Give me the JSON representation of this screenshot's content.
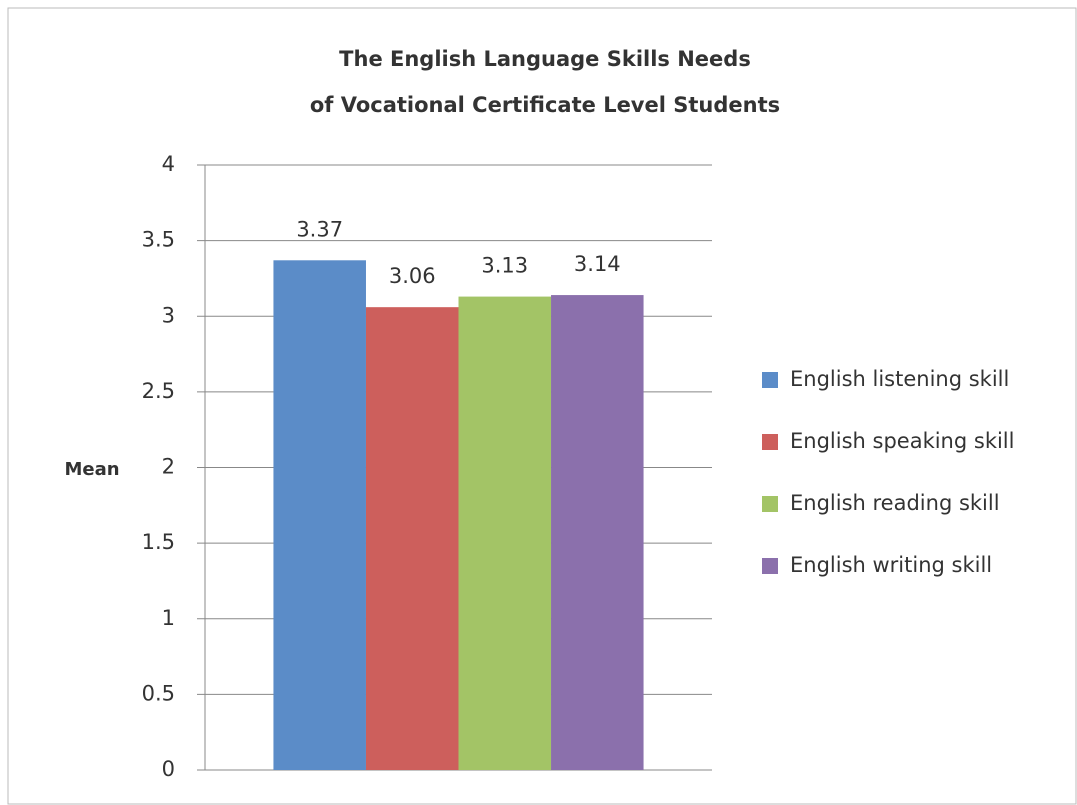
{
  "chart_data": {
    "type": "bar",
    "title": [
      "The English Language Skills Needs",
      "of Vocational Certificate Level Students"
    ],
    "y_label": "Mean",
    "categories": [
      null
    ],
    "series": [
      {
        "name": "English listening skill",
        "color": "#5b8cc8",
        "values": [
          3.37
        ]
      },
      {
        "name": "English speaking skill",
        "color": "#cd5f5c",
        "values": [
          3.06
        ]
      },
      {
        "name": "English reading skill",
        "color": "#a3c466",
        "values": [
          3.13
        ]
      },
      {
        "name": "English writing skill",
        "color": "#8b70ac",
        "values": [
          3.14
        ]
      }
    ],
    "ylim": [
      0,
      4
    ],
    "yticks": [
      0,
      0.5,
      1,
      1.5,
      2,
      2.5,
      3,
      3.5,
      4
    ],
    "grid": true,
    "legend": "right"
  }
}
